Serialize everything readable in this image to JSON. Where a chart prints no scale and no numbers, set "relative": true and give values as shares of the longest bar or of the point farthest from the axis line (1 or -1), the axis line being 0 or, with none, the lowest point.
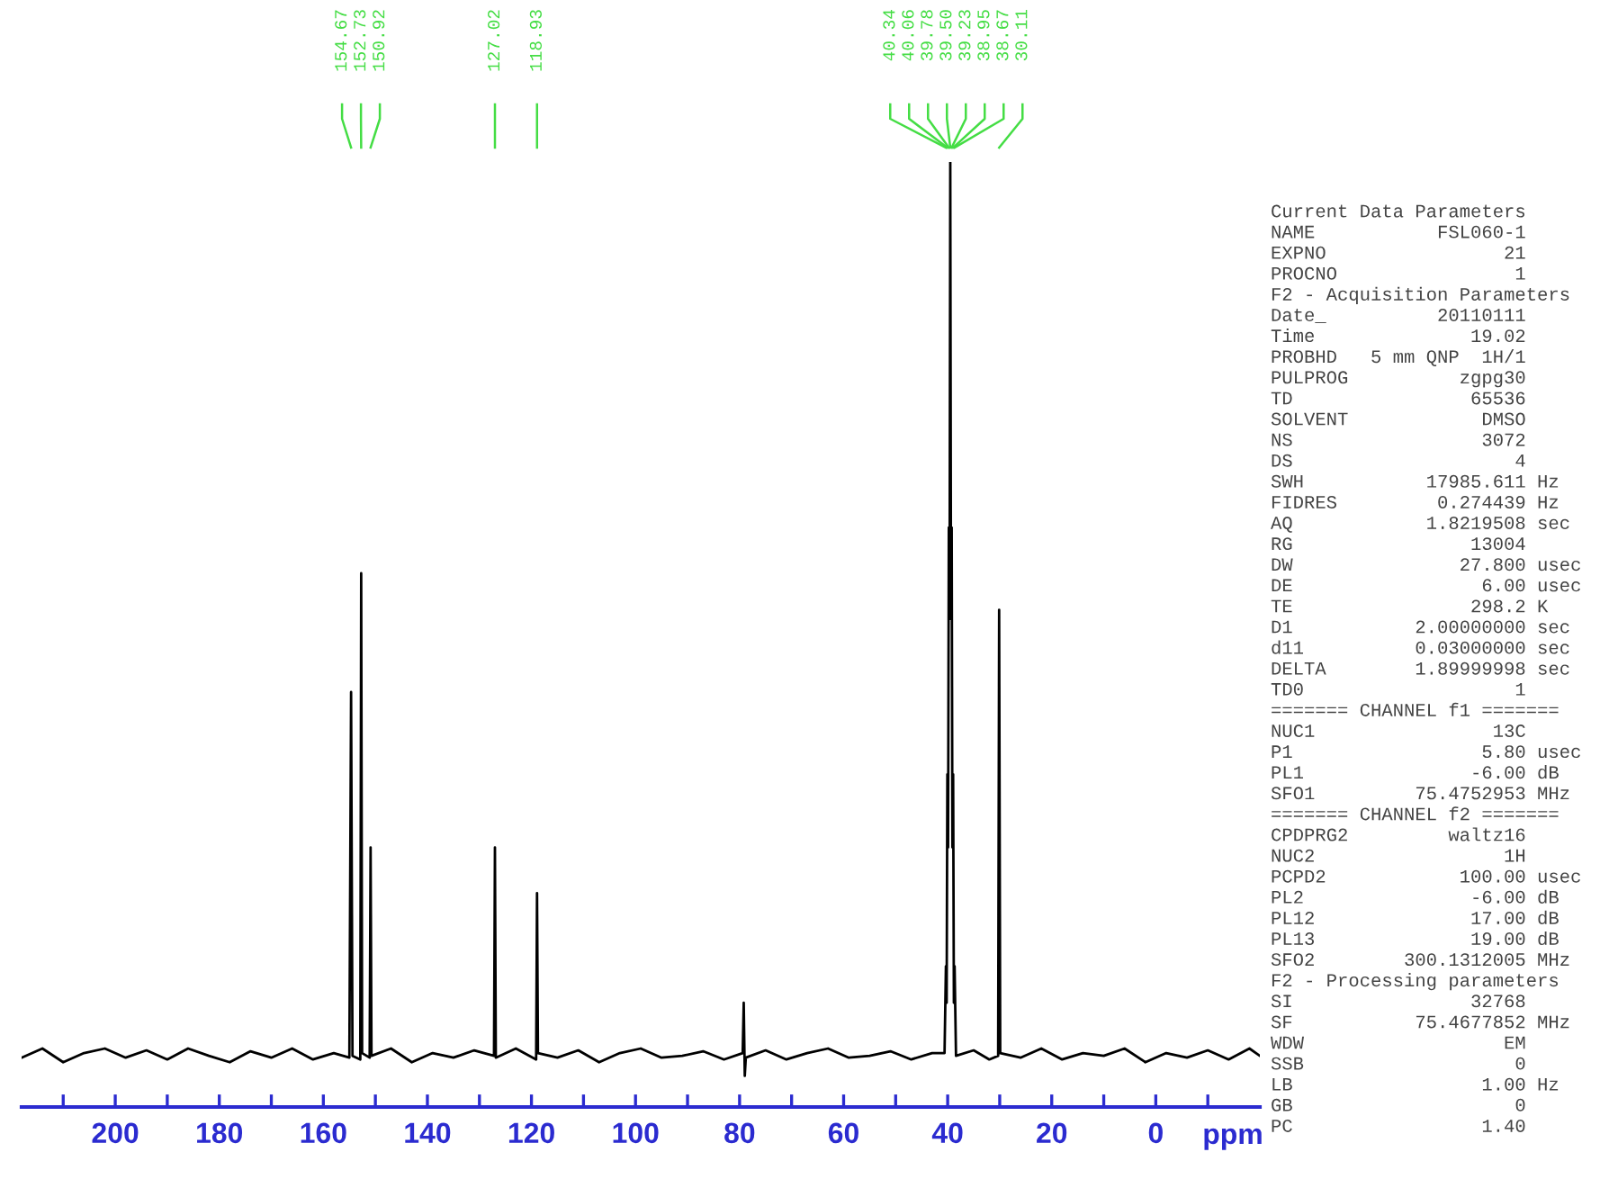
{
  "chart_data": {
    "type": "line",
    "relative": true,
    "xlabel": "ppm",
    "xlim": [
      218,
      -20
    ],
    "xticks": [
      {
        "value": 210,
        "label": null
      },
      200,
      {
        "value": 190,
        "label": null
      },
      180,
      {
        "value": 170,
        "label": null
      },
      160,
      {
        "value": 150,
        "label": null
      },
      140,
      {
        "value": 130,
        "label": null
      },
      120,
      {
        "value": 110,
        "label": null
      },
      100,
      {
        "value": 90,
        "label": null
      },
      80,
      {
        "value": 70,
        "label": null
      },
      60,
      {
        "value": 50,
        "label": null
      },
      40,
      {
        "value": 30,
        "label": null
      },
      20,
      {
        "value": 10,
        "label": null
      },
      0,
      {
        "value": -10,
        "label": null
      }
    ],
    "color": "#000000",
    "x": [
      218,
      214,
      210,
      206,
      202,
      198,
      194,
      190,
      186,
      182,
      178,
      174,
      170,
      166,
      162,
      158,
      155.0,
      154.67,
      154.4,
      152.9,
      152.73,
      152.55,
      151.1,
      150.92,
      150.75,
      147,
      143,
      139,
      135,
      131,
      127.2,
      127.02,
      126.85,
      123,
      119.1,
      118.93,
      118.75,
      115,
      111,
      107,
      103,
      99,
      95,
      91,
      87,
      83,
      79.4,
      79.2,
      79.0,
      78.8,
      75,
      71,
      67,
      63,
      59,
      55,
      51,
      47,
      43,
      40.6,
      40.34,
      40.2,
      40.06,
      39.92,
      39.78,
      39.64,
      39.5,
      39.36,
      39.23,
      39.09,
      38.95,
      38.81,
      38.67,
      38.4,
      35,
      32,
      30.3,
      30.11,
      29.9,
      26,
      22,
      18,
      14,
      10,
      6,
      2,
      -2,
      -6,
      -10,
      -14,
      -18,
      -20
    ],
    "values": [
      0.02,
      0.03,
      0.015,
      0.025,
      0.03,
      0.02,
      0.028,
      0.018,
      0.03,
      0.022,
      0.015,
      0.027,
      0.02,
      0.03,
      0.018,
      0.025,
      0.02,
      0.42,
      0.022,
      0.018,
      0.55,
      0.025,
      0.02,
      0.25,
      0.022,
      0.03,
      0.015,
      0.025,
      0.02,
      0.028,
      0.022,
      0.25,
      0.02,
      0.03,
      0.018,
      0.2,
      0.025,
      0.02,
      0.028,
      0.015,
      0.025,
      0.03,
      0.02,
      0.022,
      0.027,
      0.018,
      0.025,
      0.08,
      0.0,
      0.02,
      0.028,
      0.018,
      0.025,
      0.03,
      0.02,
      0.022,
      0.027,
      0.018,
      0.025,
      0.025,
      0.12,
      0.08,
      0.33,
      0.25,
      0.6,
      0.5,
      1.0,
      0.5,
      0.6,
      0.25,
      0.33,
      0.08,
      0.12,
      0.022,
      0.028,
      0.018,
      0.022,
      0.51,
      0.025,
      0.02,
      0.03,
      0.018,
      0.025,
      0.022,
      0.03,
      0.015,
      0.025,
      0.02,
      0.028,
      0.018,
      0.03,
      0.022
    ],
    "annotations": [
      "154.67",
      "152.73",
      "150.92",
      "127.02",
      "118.93",
      "40.34",
      "40.06",
      "39.78",
      "39.50",
      "39.23",
      "38.95",
      "38.67",
      "30.11",
      "Current Data Parameters",
      "NAME           FSL060-1",
      "EXPNO                21",
      "PROCNO                1",
      "F2 - Acquisition Parameters",
      "Date_          20110111",
      "Time              19.02",
      "PROBHD   5 mm QNP  1H/1",
      "PULPROG          zgpg30",
      "TD                65536",
      "SOLVENT            DMSO",
      "NS                 3072",
      "DS                    4",
      "SWH           17985.611 Hz",
      "FIDRES         0.274439 Hz",
      "AQ            1.8219508 sec",
      "RG                13004",
      "DW               27.800 usec",
      "DE                 6.00 usec",
      "TE                298.2 K",
      "D1           2.00000000 sec",
      "d11          0.03000000 sec",
      "DELTA        1.89999998 sec",
      "TD0                   1",
      "======= CHANNEL f1 =======",
      "NUC1                13C",
      "P1                 5.80 usec",
      "PL1               -6.00 dB",
      "SFO1         75.4752953 MHz",
      "======= CHANNEL f2 =======",
      "CPDPRG2         waltz16",
      "NUC2                 1H",
      "PCPD2            100.00 usec",
      "PL2               -6.00 dB",
      "PL12              17.00 dB",
      "PL13              19.00 dB",
      "SFO2        300.1312005 MHz",
      "F2 - Processing parameters",
      "SI                32768",
      "SF           75.4677852 MHz",
      "WDW                  EM",
      "SSB                   0",
      "LB                 1.00 Hz",
      "GB                    0",
      "PC                 1.40"
    ]
  }
}
